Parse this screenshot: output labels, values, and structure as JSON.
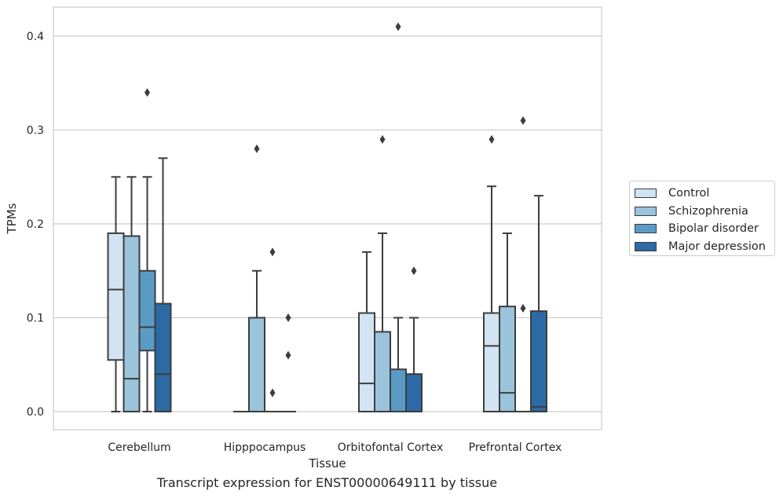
{
  "chart_data": {
    "type": "box",
    "title": "Transcript expression for ENST00000649111 by tissue",
    "xlabel": "Tissue",
    "ylabel": "TPMs",
    "ylim": [
      -0.02,
      0.432
    ],
    "yticks": [
      "0.0",
      "0.1",
      "0.2",
      "0.3",
      "0.4"
    ],
    "ytick_values": [
      0.0,
      0.1,
      0.2,
      0.3,
      0.4
    ],
    "grid": "horizontal",
    "legend_position": "right",
    "categories": [
      "Cerebellum",
      "Hipppocampus",
      "Orbitofontal Cortex",
      "Prefrontal Cortex"
    ],
    "series": [
      {
        "name": "Control",
        "color": "#d2e3f3",
        "boxes": [
          {
            "min": 0.0,
            "q1": 0.055,
            "median": 0.13,
            "q3": 0.19,
            "max": 0.25,
            "outliers": []
          },
          {
            "min": 0.0,
            "q1": 0.0,
            "median": 0.0,
            "q3": 0.0,
            "max": 0.0,
            "outliers": []
          },
          {
            "min": 0.0,
            "q1": 0.0,
            "median": 0.03,
            "q3": 0.105,
            "max": 0.17,
            "outliers": []
          },
          {
            "min": 0.0,
            "q1": 0.0,
            "median": 0.07,
            "q3": 0.105,
            "max": 0.24,
            "outliers": [
              0.29
            ]
          }
        ]
      },
      {
        "name": "Schizophrenia",
        "color": "#9ac3dc",
        "boxes": [
          {
            "min": 0.0,
            "q1": 0.0,
            "median": 0.035,
            "q3": 0.187,
            "max": 0.25,
            "outliers": []
          },
          {
            "min": 0.0,
            "q1": 0.0,
            "median": 0.0,
            "q3": 0.1,
            "max": 0.15,
            "outliers": [
              0.28
            ]
          },
          {
            "min": 0.0,
            "q1": 0.0,
            "median": 0.0,
            "q3": 0.085,
            "max": 0.19,
            "outliers": [
              0.29
            ]
          },
          {
            "min": 0.0,
            "q1": 0.0,
            "median": 0.02,
            "q3": 0.112,
            "max": 0.19,
            "outliers": []
          }
        ]
      },
      {
        "name": "Bipolar disorder",
        "color": "#5a9bc6",
        "boxes": [
          {
            "min": 0.0,
            "q1": 0.065,
            "median": 0.09,
            "q3": 0.15,
            "max": 0.25,
            "outliers": [
              0.34
            ]
          },
          {
            "min": 0.0,
            "q1": 0.0,
            "median": 0.0,
            "q3": 0.0,
            "max": 0.0,
            "outliers": [
              0.17,
              0.02
            ]
          },
          {
            "min": 0.0,
            "q1": 0.0,
            "median": 0.0,
            "q3": 0.045,
            "max": 0.1,
            "outliers": [
              0.41
            ]
          },
          {
            "min": 0.0,
            "q1": 0.0,
            "median": 0.0,
            "q3": 0.0,
            "max": 0.0,
            "outliers": [
              0.31,
              0.11
            ]
          }
        ]
      },
      {
        "name": "Major depression",
        "color": "#2b6aa5",
        "boxes": [
          {
            "min": 0.0,
            "q1": 0.0,
            "median": 0.04,
            "q3": 0.115,
            "max": 0.27,
            "outliers": []
          },
          {
            "min": 0.0,
            "q1": 0.0,
            "median": 0.0,
            "q3": 0.0,
            "max": 0.0,
            "outliers": [
              0.1,
              0.06
            ]
          },
          {
            "min": 0.0,
            "q1": 0.0,
            "median": 0.0,
            "q3": 0.04,
            "max": 0.1,
            "outliers": [
              0.15
            ]
          },
          {
            "min": 0.0,
            "q1": 0.0,
            "median": 0.005,
            "q3": 0.107,
            "max": 0.23,
            "outliers": []
          }
        ]
      }
    ]
  }
}
